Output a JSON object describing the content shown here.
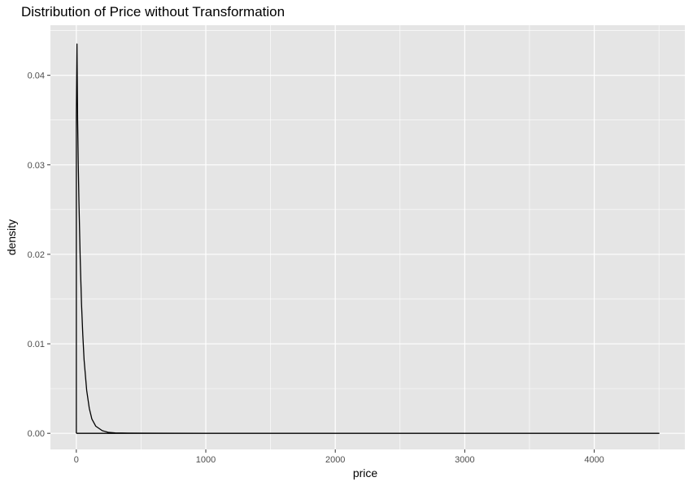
{
  "chart_data": {
    "type": "line",
    "title": "Distribution of Price without Transformation",
    "xlabel": "price",
    "ylabel": "density",
    "xlim": [
      -200,
      4700
    ],
    "ylim": [
      -0.0018,
      0.0456
    ],
    "x_ticks": [
      0,
      1000,
      2000,
      3000,
      4000
    ],
    "x_tick_labels": [
      "0",
      "1000",
      "2000",
      "3000",
      "4000"
    ],
    "x_minor": [
      500,
      1500,
      2500,
      3500,
      4500
    ],
    "y_ticks": [
      0,
      0.01,
      0.02,
      0.03,
      0.04
    ],
    "y_tick_labels": [
      "0.00",
      "0.01",
      "0.02",
      "0.03",
      "0.04"
    ],
    "y_minor": [
      0.005,
      0.015,
      0.025,
      0.035,
      0.045
    ],
    "grid": true,
    "legend": "none",
    "series": [
      {
        "x": [
          0,
          5,
          10,
          15,
          20,
          30,
          40,
          50,
          60,
          80,
          100,
          120,
          150,
          200,
          250,
          300,
          400,
          600,
          1000,
          2000,
          3000,
          4000,
          4500
        ],
        "y": [
          0.0355,
          0.0435,
          0.035,
          0.03,
          0.026,
          0.0195,
          0.0145,
          0.011,
          0.0082,
          0.0048,
          0.0028,
          0.0016,
          0.0008,
          0.0003,
          0.0001,
          5e-05,
          2e-05,
          1e-05,
          0,
          0,
          0,
          0,
          0
        ]
      }
    ]
  },
  "colors": {
    "panel_background": "#e5e5e5",
    "grid": "#ffffff",
    "line": "#000000",
    "tick_text": "#4d4d4d"
  }
}
